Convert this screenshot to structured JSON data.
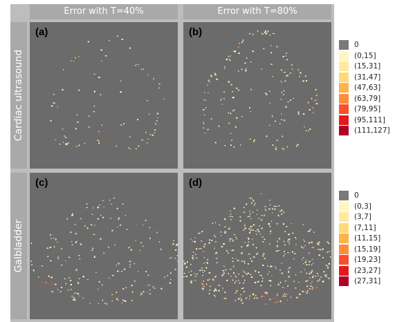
{
  "columns": [
    "Error with T=40%",
    "Error with T=80%"
  ],
  "rows": [
    "Cardiac ultrasound",
    "Galbladder"
  ],
  "panels": [
    {
      "label": "(a)",
      "shape": "heart",
      "intensity": 0.35
    },
    {
      "label": "(b)",
      "shape": "heart",
      "intensity": 0.75
    },
    {
      "label": "(c)",
      "shape": "fan",
      "intensity": 0.45
    },
    {
      "label": "(d)",
      "shape": "fan",
      "intensity": 1.0
    }
  ],
  "legend_top": {
    "items": [
      "0",
      "(0,15]",
      "(15,31]",
      "(31,47]",
      "(47,63]",
      "(63,79]",
      "(79,95]",
      "(95,111]",
      "(111,127]"
    ]
  },
  "legend_bottom": {
    "items": [
      "0",
      "(0,3]",
      "(3,7]",
      "(7,11]",
      "(11,15]",
      "(15,19]",
      "(19,23]",
      "(23,27]",
      "(27,31]"
    ]
  },
  "colors": {
    "background": "#6b6b6b",
    "scale": [
      "#7a7a7a",
      "#fff7c0",
      "#ffe9a0",
      "#fed976",
      "#feb24c",
      "#fd8d3c",
      "#fc4e2a",
      "#e31a1c",
      "#b10026"
    ]
  }
}
